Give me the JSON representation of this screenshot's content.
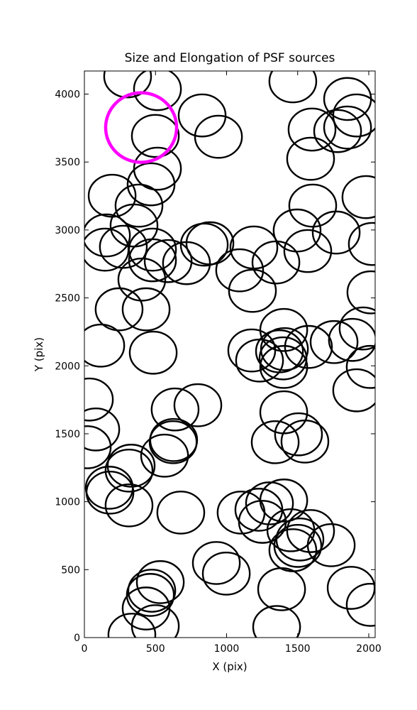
{
  "chart_data": {
    "type": "ellipse",
    "title": "Size and Elongation of PSF sources",
    "xlabel": "X (pix)",
    "ylabel": "Y (pix)",
    "xlim": [
      0,
      2045
    ],
    "ylim": [
      0,
      4170
    ],
    "xticks": [
      0,
      500,
      1000,
      1500,
      2000
    ],
    "yticks": [
      0,
      500,
      1000,
      1500,
      2000,
      2500,
      3000,
      3500,
      4000
    ],
    "series": [
      {
        "color": "#000000",
        "width": 330,
        "height": 310,
        "x": [
          304,
          514,
          828,
          943,
          499,
          514,
          469,
          384,
          195,
          349,
          155,
          145,
          274,
          479,
          479,
          589,
          718,
          843,
          883,
          1092,
          1192,
          1347,
          1182,
          404,
          244,
          434,
          115,
          484,
          1466,
          1851,
          1601,
          1781,
          1851,
          1915,
          1591,
          1606,
          1496,
          1771,
          1571,
          1980,
          2025,
          2015,
          1402,
          1177,
          1232,
          1372,
          1402,
          1576,
          1397,
          1407,
          1756,
          1885,
          1960,
          1915,
          2010,
          35,
          80,
          20,
          638,
          798,
          564,
          624,
          628,
          329,
          314,
          180,
          175,
          314,
          678,
          1402,
          1506,
          1342,
          1551,
          1102,
          1227,
          1302,
          1402,
          1252,
          1452,
          1591,
          1516,
          1501,
          1466,
          1736,
          928,
          998,
          534,
          474,
          464,
          434,
          499,
          334,
          1387,
          1876,
          2010,
          1352
        ],
        "y": [
          4131,
          4037,
          3843,
          3686,
          3692,
          3451,
          3336,
          3179,
          3252,
          3033,
          2960,
          2855,
          2876,
          2855,
          2777,
          2771,
          2756,
          2892,
          2902,
          2703,
          2871,
          2761,
          2552,
          2635,
          2416,
          2416,
          2149,
          2097,
          4094,
          3964,
          3739,
          3728,
          3754,
          3843,
          3524,
          3179,
          2996,
          2981,
          2845,
          3242,
          2897,
          2541,
          2264,
          2113,
          2039,
          2107,
          1992,
          2139,
          2055,
          2123,
          2175,
          2191,
          2275,
          1820,
          1992,
          1752,
          1532,
          1401,
          1679,
          1710,
          1339,
          1438,
          1454,
          1265,
          1229,
          1067,
          1103,
          973,
          920,
          1658,
          1496,
          1438,
          1443,
          920,
          941,
          988,
          1009,
          852,
          790,
          784,
          722,
          675,
          643,
          680,
          549,
          471,
          408,
          345,
          314,
          214,
          84,
          21,
          356,
          366,
          241,
          78
        ]
      },
      {
        "color": "#ff00ff",
        "width": 499,
        "height": 512,
        "x": [
          399
        ],
        "y": [
          3754
        ]
      }
    ]
  }
}
